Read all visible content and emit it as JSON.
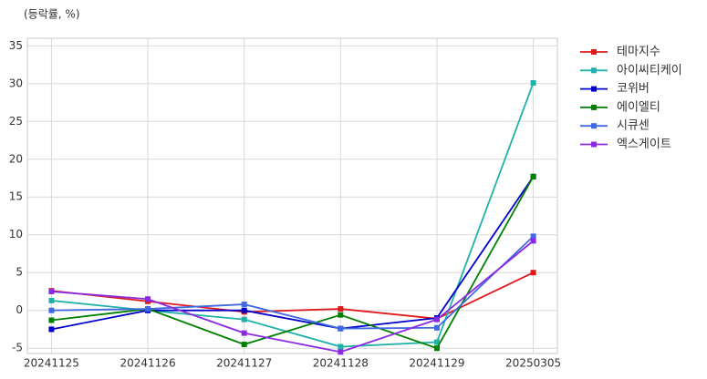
{
  "chart_data": {
    "type": "line",
    "y_label": "(등락률, %)",
    "categories": [
      "20241125",
      "20241126",
      "20241127",
      "20241128",
      "20241129",
      "20250305"
    ],
    "series": [
      {
        "name": "테마지수",
        "color": "#e0191c",
        "values": [
          2.6,
          1.2,
          -0.2,
          0.2,
          -1.1,
          5.0
        ]
      },
      {
        "name": "아이씨티케이",
        "color": "#20b2aa",
        "values": [
          1.3,
          0.0,
          -1.2,
          -4.8,
          -4.2,
          30.1
        ]
      },
      {
        "name": "코위버",
        "color": "#0000cd",
        "values": [
          -2.5,
          0.0,
          0.0,
          -2.4,
          -1.0,
          17.7
        ]
      },
      {
        "name": "에이엘티",
        "color": "#008000",
        "values": [
          -1.3,
          0.2,
          -4.5,
          -0.6,
          -5.0,
          17.7
        ]
      },
      {
        "name": "시큐센",
        "color": "#4169e1",
        "values": [
          0.0,
          0.2,
          0.8,
          -2.4,
          -2.3,
          9.8
        ]
      },
      {
        "name": "엑스게이트",
        "color": "#8a2be2",
        "values": [
          2.5,
          1.5,
          -3.0,
          -5.5,
          -1.2,
          9.2
        ]
      }
    ],
    "ylim": [
      -5.7,
      36
    ],
    "yticks": [
      -5,
      0,
      5,
      10,
      15,
      20,
      25,
      30,
      35
    ],
    "grid": true,
    "legend": "outside-right"
  }
}
